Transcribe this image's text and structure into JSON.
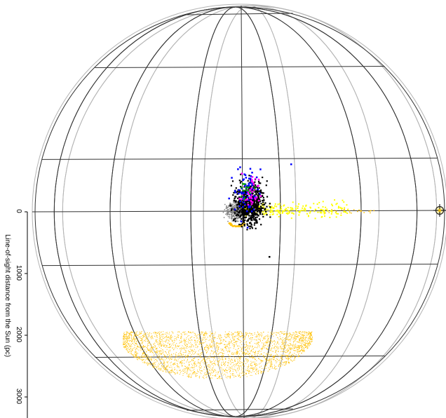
{
  "chart_data": {
    "type": "scatter",
    "title": "",
    "axis": {
      "label": "Line-of-sight distance from the Sun (pc)",
      "ticks": [
        0,
        1000,
        2000,
        3000
      ],
      "range": [
        0,
        3200
      ]
    },
    "sphere": {
      "latitude_lines": 6,
      "meridian_lines": 6,
      "wire_color": "#333333",
      "back_wire_color": "#b4b4b4"
    },
    "sun_marker": {
      "name": "Sun",
      "color": "#e8b800",
      "icon": "crosshair-circle-icon"
    },
    "series": [
      {
        "color": "#808080",
        "count": 420
      },
      {
        "color": "#ffc000",
        "count": 3200
      },
      {
        "color": "#ffff00",
        "count": 260
      },
      {
        "color": "#000000",
        "count": 650
      },
      {
        "color": "#0000ff",
        "count": 70
      },
      {
        "color": "#ff00ff",
        "count": 40
      },
      {
        "color": "#00aa00",
        "count": 12
      }
    ]
  }
}
